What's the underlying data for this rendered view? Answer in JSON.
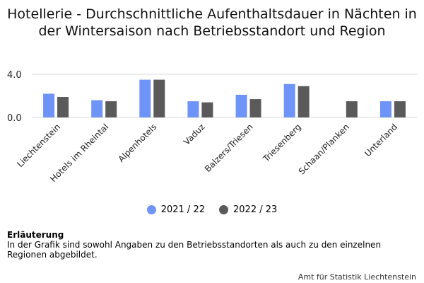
{
  "title": "Hotellerie - Durchschnittliche Aufenthaltsdauer in Nächten in der Wintersaison nach Betriebsstandort und Region",
  "colors": {
    "series_1": "#6f94f8",
    "series_2": "#5a5a5a",
    "grid": "#d8d8d8"
  },
  "chart_data": {
    "type": "bar",
    "title": "Hotellerie - Durchschnittliche Aufenthaltsdauer in Nächten in der Wintersaison nach Betriebsstandort und Region",
    "categories": [
      "Liechtenstein",
      "Hotels im Rheintal",
      "Alpenhotels",
      "Vaduz",
      "Balzers/Triesen",
      "Triesenberg",
      "Schaan/Planken",
      "Unterland"
    ],
    "series": [
      {
        "name": "2021 / 22",
        "values": [
          2.2,
          1.6,
          3.5,
          1.5,
          2.1,
          3.1,
          null,
          1.5
        ]
      },
      {
        "name": "2022 / 23",
        "values": [
          1.9,
          1.5,
          3.5,
          1.4,
          1.7,
          2.9,
          1.5,
          1.5
        ]
      }
    ],
    "yticks": [
      "0.0",
      "4.0"
    ],
    "ylim": [
      0,
      4.0
    ],
    "grid": true,
    "legend_position": "bottom"
  },
  "note": {
    "heading": "Erläuterung",
    "text": "In der Grafik sind sowohl Angaben zu den Betriebsstandorten als auch zu den einzelnen Regionen abgebildet."
  },
  "source": "Amt für Statistik Liechtenstein"
}
